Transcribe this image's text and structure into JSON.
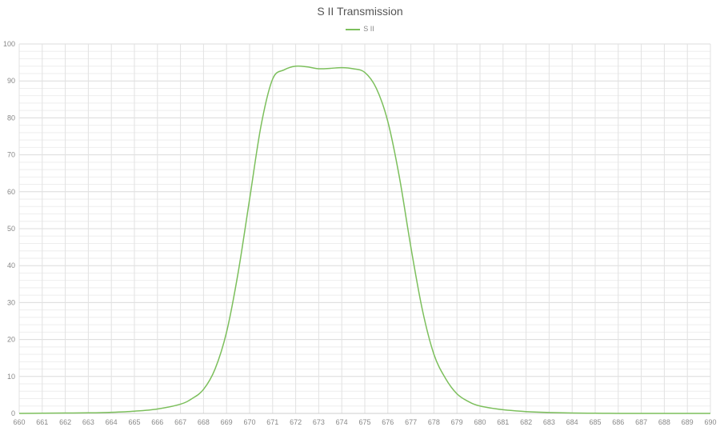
{
  "chart_data": {
    "type": "line",
    "title": "S II Transmission",
    "xlabel": "",
    "ylabel": "",
    "xlim": [
      660,
      690
    ],
    "ylim": [
      0,
      100
    ],
    "x_ticks": [
      "660",
      "661",
      "662",
      "663",
      "664",
      "665",
      "666",
      "667",
      "668",
      "669",
      "670",
      "671",
      "672",
      "673",
      "674",
      "675",
      "676",
      "677",
      "678",
      "679",
      "680",
      "681",
      "682",
      "683",
      "684",
      "685",
      "686",
      "687",
      "688",
      "689",
      "690"
    ],
    "y_ticks": [
      "0",
      "10",
      "20",
      "30",
      "40",
      "50",
      "60",
      "70",
      "80",
      "90",
      "100"
    ],
    "grid": true,
    "legend_position": "top-center",
    "series": [
      {
        "name": "S II",
        "color": "#7cbf5c",
        "points": [
          [
            660,
            0.0
          ],
          [
            661,
            0.05
          ],
          [
            662,
            0.1
          ],
          [
            663,
            0.15
          ],
          [
            664,
            0.3
          ],
          [
            665,
            0.6
          ],
          [
            666,
            1.2
          ],
          [
            667,
            2.5
          ],
          [
            667.5,
            4.0
          ],
          [
            668,
            6.5
          ],
          [
            668.5,
            12
          ],
          [
            669,
            22
          ],
          [
            669.5,
            38
          ],
          [
            670,
            58
          ],
          [
            670.5,
            78
          ],
          [
            671,
            90.5
          ],
          [
            671.5,
            93
          ],
          [
            672,
            94
          ],
          [
            672.5,
            93.8
          ],
          [
            673,
            93.3
          ],
          [
            673.5,
            93.4
          ],
          [
            674,
            93.6
          ],
          [
            674.5,
            93.3
          ],
          [
            675,
            92.3
          ],
          [
            675.5,
            88
          ],
          [
            676,
            79
          ],
          [
            676.5,
            64
          ],
          [
            677,
            45
          ],
          [
            677.5,
            28
          ],
          [
            678,
            16
          ],
          [
            678.5,
            9.5
          ],
          [
            679,
            5.3
          ],
          [
            679.5,
            3.2
          ],
          [
            680,
            2.0
          ],
          [
            681,
            1.0
          ],
          [
            682,
            0.5
          ],
          [
            683,
            0.25
          ],
          [
            684,
            0.1
          ],
          [
            685,
            0.05
          ],
          [
            686,
            0.0
          ],
          [
            687,
            0.0
          ],
          [
            688,
            0.0
          ],
          [
            689,
            0.0
          ],
          [
            690,
            0.0
          ]
        ]
      }
    ]
  }
}
